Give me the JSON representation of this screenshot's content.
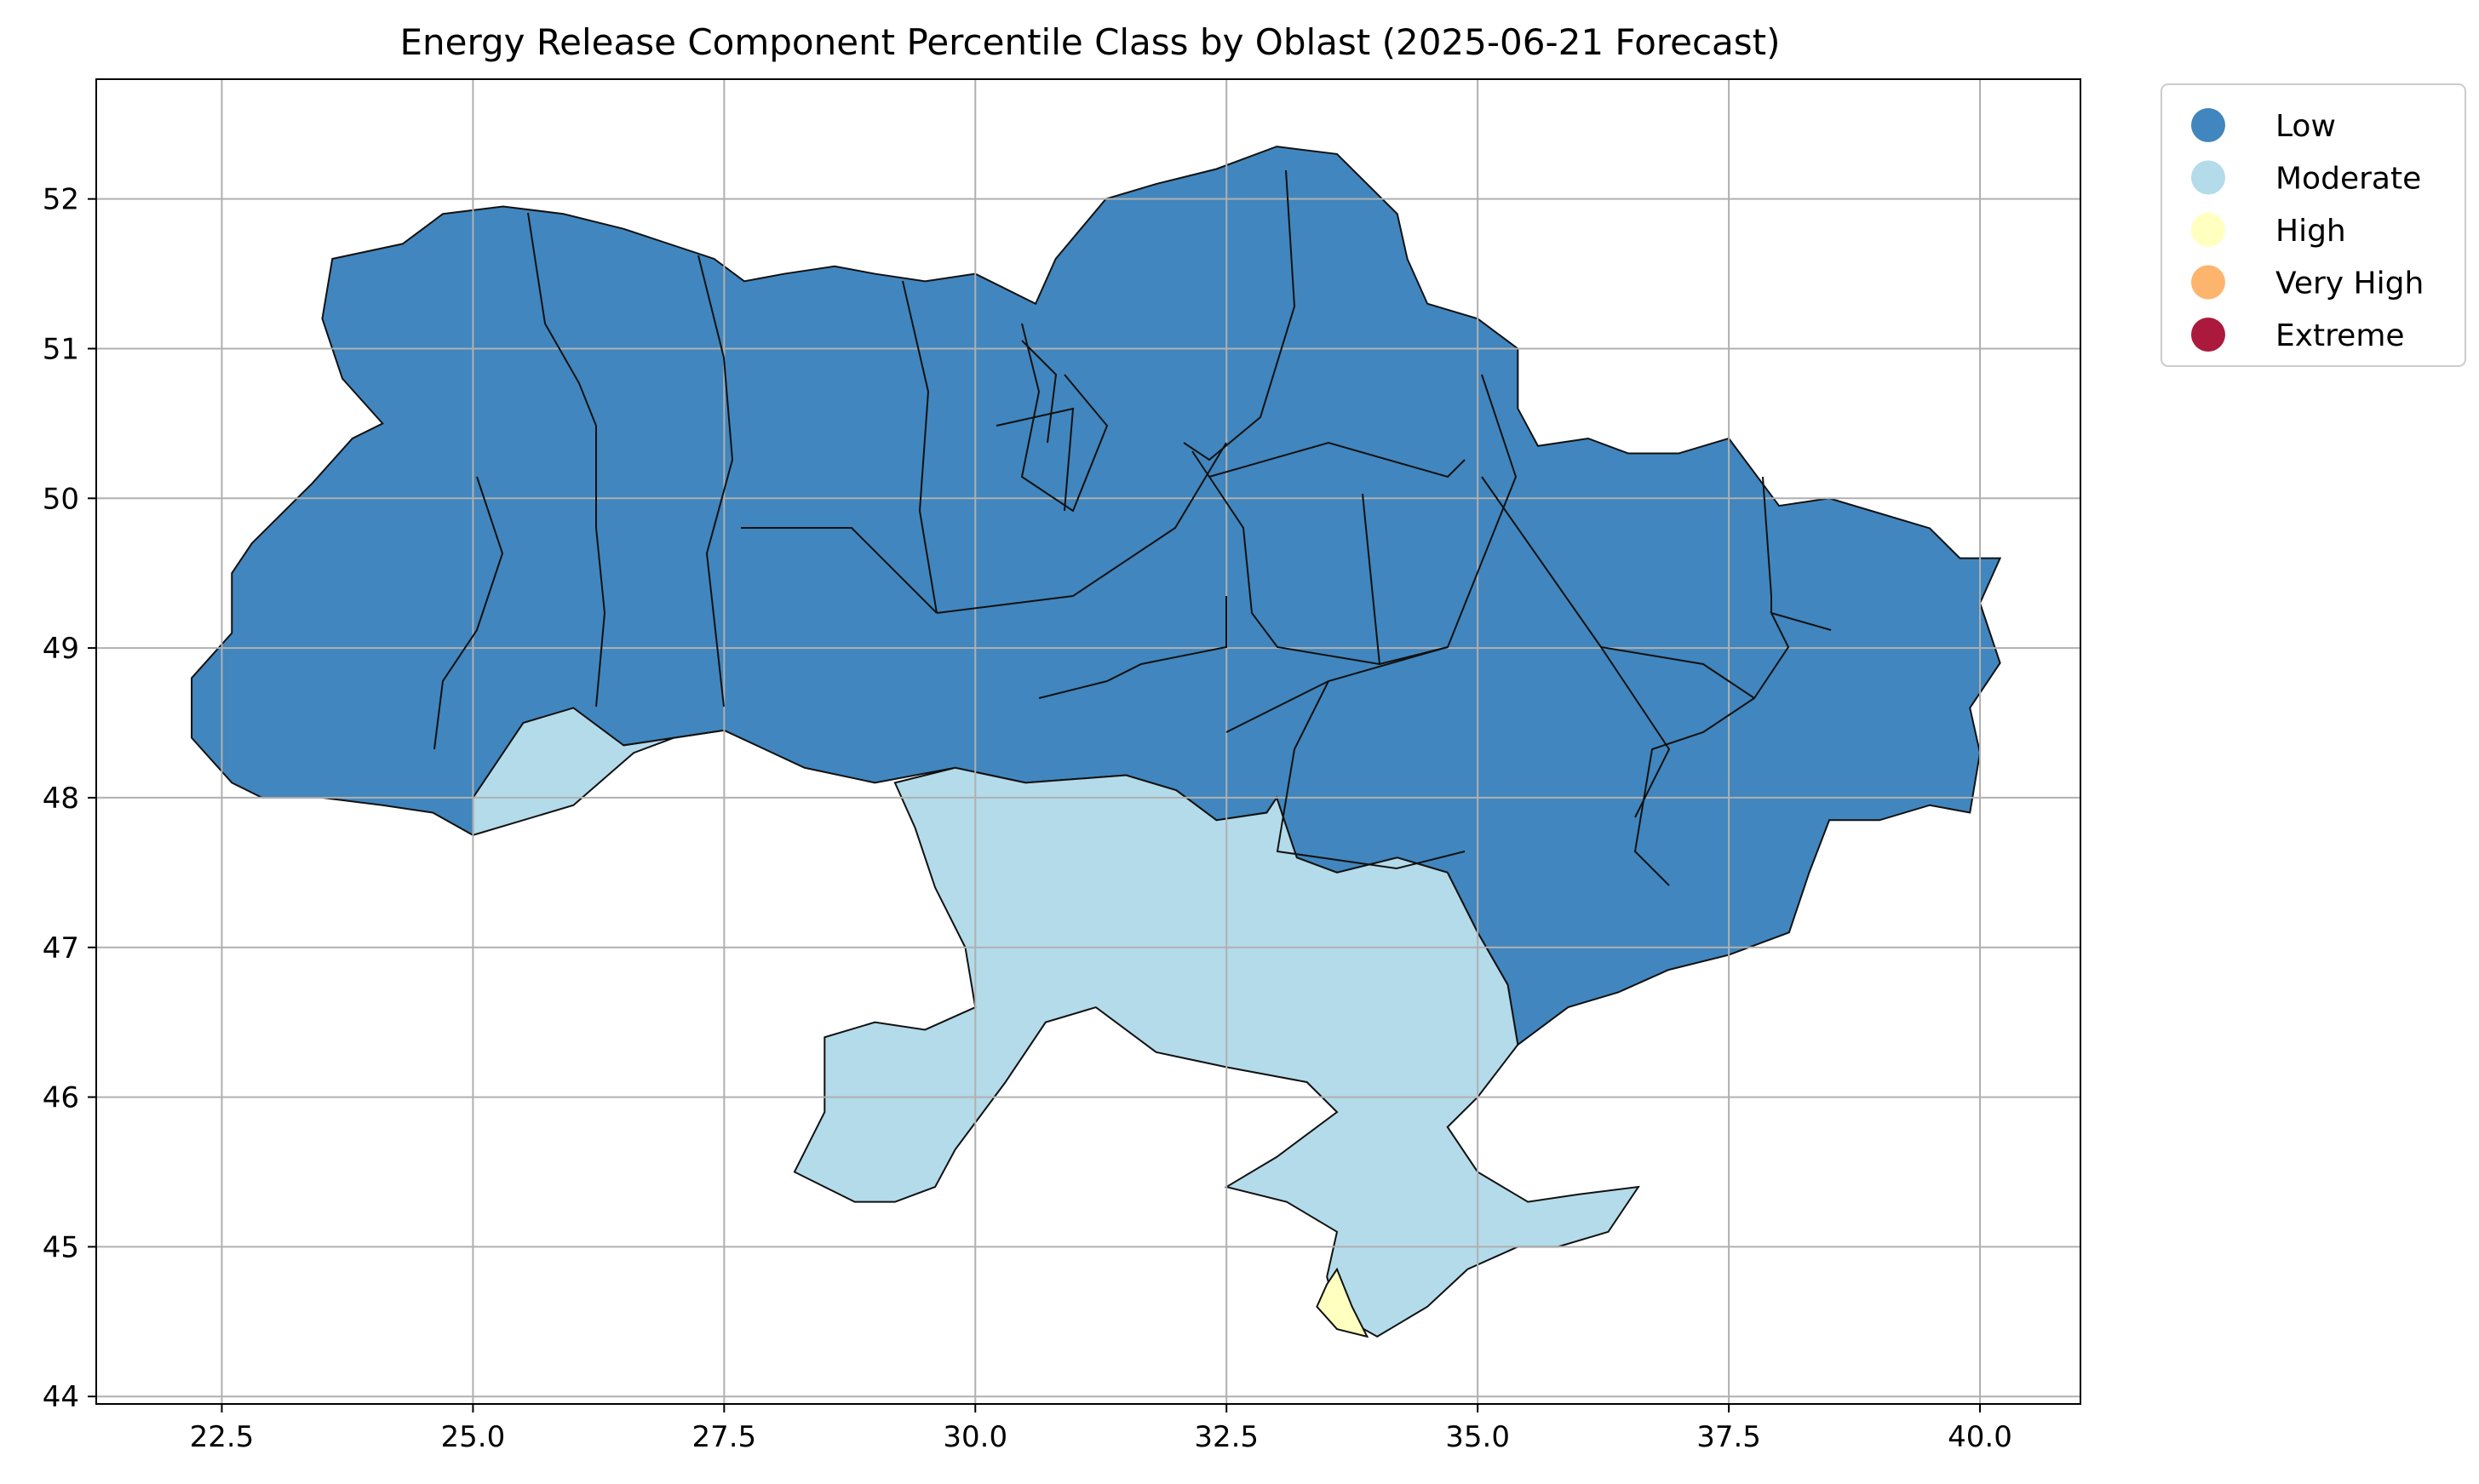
{
  "title": "Energy Release Component Percentile Class by Oblast (2025-06-21 Forecast)",
  "axes": {
    "x_ticks": [
      "22.5",
      "25.0",
      "27.5",
      "30.0",
      "32.5",
      "35.0",
      "37.5",
      "40.0"
    ],
    "y_ticks": [
      "44",
      "45",
      "46",
      "47",
      "48",
      "49",
      "50",
      "51",
      "52"
    ],
    "xlim": [
      21.25,
      41.0
    ],
    "ylim": [
      43.95,
      52.8
    ],
    "grid": true
  },
  "legend": {
    "placement": "outside-top-right",
    "items": [
      {
        "label": "Low",
        "color": "#4186be"
      },
      {
        "label": "Moderate",
        "color": "#b3dbea"
      },
      {
        "label": "High",
        "color": "#ffffbf"
      },
      {
        "label": "Very High",
        "color": "#fdb46d"
      },
      {
        "label": "Extreme",
        "color": "#ab1a3c"
      }
    ]
  },
  "regions": [
    {
      "class": "Low",
      "points": [
        [
          22.2,
          48.4
        ],
        [
          22.6,
          48.1
        ],
        [
          22.9,
          48.0
        ],
        [
          23.5,
          48.0
        ],
        [
          24.1,
          47.95
        ],
        [
          24.6,
          47.9
        ],
        [
          25.0,
          47.75
        ],
        [
          25.5,
          48.0
        ],
        [
          26.0,
          48.5
        ],
        [
          26.5,
          48.35
        ],
        [
          27.5,
          48.45
        ],
        [
          28.3,
          48.2
        ],
        [
          29.0,
          48.1
        ],
        [
          29.8,
          48.2
        ],
        [
          30.5,
          48.1
        ],
        [
          31.5,
          48.15
        ],
        [
          32.0,
          48.05
        ],
        [
          32.4,
          47.85
        ],
        [
          32.9,
          47.9
        ],
        [
          33.0,
          48.0
        ],
        [
          33.2,
          47.6
        ],
        [
          33.6,
          47.5
        ],
        [
          34.2,
          47.6
        ],
        [
          34.7,
          47.5
        ],
        [
          35.0,
          47.1
        ],
        [
          35.3,
          46.75
        ],
        [
          35.4,
          46.35
        ],
        [
          35.9,
          46.6
        ],
        [
          36.4,
          46.7
        ],
        [
          36.9,
          46.85
        ],
        [
          37.5,
          46.95
        ],
        [
          38.1,
          47.1
        ],
        [
          38.3,
          47.5
        ],
        [
          38.5,
          47.85
        ],
        [
          39.0,
          47.85
        ],
        [
          39.5,
          47.95
        ],
        [
          39.9,
          47.9
        ],
        [
          40.0,
          48.3
        ],
        [
          39.9,
          48.6
        ],
        [
          40.2,
          48.9
        ],
        [
          40.0,
          49.3
        ],
        [
          40.2,
          49.6
        ],
        [
          39.8,
          49.6
        ],
        [
          39.5,
          49.8
        ],
        [
          39.0,
          49.9
        ],
        [
          38.5,
          50.0
        ],
        [
          38.0,
          49.95
        ],
        [
          37.5,
          50.4
        ],
        [
          37.0,
          50.3
        ],
        [
          36.5,
          50.3
        ],
        [
          36.1,
          50.4
        ],
        [
          35.6,
          50.35
        ],
        [
          35.4,
          50.6
        ],
        [
          35.4,
          51.0
        ],
        [
          35.2,
          51.1
        ],
        [
          35.0,
          51.2
        ],
        [
          34.5,
          51.3
        ],
        [
          34.3,
          51.6
        ],
        [
          34.2,
          51.9
        ],
        [
          33.6,
          52.3
        ],
        [
          33.0,
          52.35
        ],
        [
          32.4,
          52.2
        ],
        [
          31.8,
          52.1
        ],
        [
          31.3,
          52.0
        ],
        [
          30.8,
          51.6
        ],
        [
          30.6,
          51.3
        ],
        [
          30.0,
          51.5
        ],
        [
          29.5,
          51.45
        ],
        [
          29.0,
          51.5
        ],
        [
          28.6,
          51.55
        ],
        [
          28.1,
          51.5
        ],
        [
          27.7,
          51.45
        ],
        [
          27.4,
          51.6
        ],
        [
          26.5,
          51.8
        ],
        [
          25.9,
          51.9
        ],
        [
          25.3,
          51.95
        ],
        [
          24.7,
          51.9
        ],
        [
          24.3,
          51.7
        ],
        [
          23.6,
          51.6
        ],
        [
          23.5,
          51.2
        ],
        [
          23.7,
          50.8
        ],
        [
          24.1,
          50.5
        ],
        [
          23.8,
          50.4
        ],
        [
          23.4,
          50.1
        ],
        [
          22.8,
          49.7
        ],
        [
          22.6,
          49.5
        ],
        [
          22.6,
          49.1
        ],
        [
          22.2,
          48.8
        ]
      ]
    },
    {
      "class": "Moderate",
      "points": [
        [
          25.0,
          47.75
        ],
        [
          25.5,
          47.85
        ],
        [
          26.0,
          47.95
        ],
        [
          26.6,
          48.3
        ],
        [
          27.0,
          48.4
        ],
        [
          27.5,
          48.45
        ],
        [
          26.5,
          48.35
        ],
        [
          26.0,
          48.6
        ],
        [
          25.5,
          48.5
        ],
        [
          25.0,
          48.0
        ]
      ]
    },
    {
      "class": "Moderate",
      "points": [
        [
          29.2,
          48.1
        ],
        [
          29.8,
          48.2
        ],
        [
          30.5,
          48.1
        ],
        [
          31.5,
          48.15
        ],
        [
          32.0,
          48.05
        ],
        [
          32.4,
          47.85
        ],
        [
          32.9,
          47.9
        ],
        [
          33.0,
          48.0
        ],
        [
          33.2,
          47.6
        ],
        [
          33.6,
          47.5
        ],
        [
          34.2,
          47.6
        ],
        [
          34.7,
          47.5
        ],
        [
          35.0,
          47.1
        ],
        [
          35.3,
          46.75
        ],
        [
          35.4,
          46.35
        ],
        [
          35.0,
          46.0
        ],
        [
          34.7,
          45.8
        ],
        [
          35.0,
          45.5
        ],
        [
          35.5,
          45.3
        ],
        [
          36.0,
          45.35
        ],
        [
          36.6,
          45.4
        ],
        [
          36.3,
          45.1
        ],
        [
          35.8,
          45.0
        ],
        [
          35.4,
          45.0
        ],
        [
          34.9,
          44.85
        ],
        [
          34.5,
          44.6
        ],
        [
          34.0,
          44.4
        ],
        [
          33.6,
          44.55
        ],
        [
          33.5,
          44.8
        ],
        [
          33.6,
          45.1
        ],
        [
          33.1,
          45.3
        ],
        [
          32.5,
          45.4
        ],
        [
          33.0,
          45.6
        ],
        [
          33.6,
          45.9
        ],
        [
          33.3,
          46.1
        ],
        [
          32.5,
          46.2
        ],
        [
          31.8,
          46.3
        ],
        [
          31.2,
          46.6
        ],
        [
          30.7,
          46.5
        ],
        [
          30.3,
          46.1
        ],
        [
          29.8,
          45.65
        ],
        [
          29.6,
          45.4
        ],
        [
          29.2,
          45.3
        ],
        [
          28.8,
          45.3
        ],
        [
          28.2,
          45.5
        ],
        [
          28.5,
          45.9
        ],
        [
          28.5,
          46.4
        ],
        [
          29.0,
          46.5
        ],
        [
          29.5,
          46.45
        ],
        [
          30.0,
          46.6
        ],
        [
          29.9,
          47.0
        ],
        [
          29.6,
          47.4
        ],
        [
          29.4,
          47.8
        ]
      ]
    },
    {
      "class": "High",
      "points": [
        [
          33.4,
          44.6
        ],
        [
          33.6,
          44.45
        ],
        [
          33.9,
          44.4
        ],
        [
          33.75,
          44.6
        ],
        [
          33.6,
          44.85
        ],
        [
          33.5,
          44.75
        ]
      ]
    }
  ]
}
